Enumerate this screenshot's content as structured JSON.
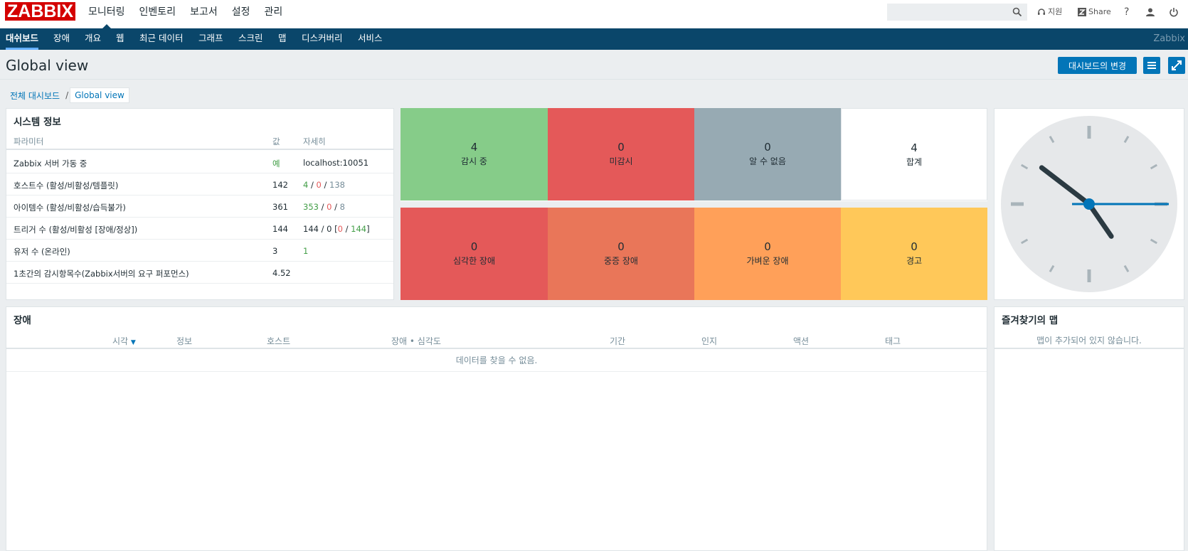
{
  "header": {
    "logo": "ZABBIX",
    "menu": [
      "모니터링",
      "인벤토리",
      "보고서",
      "설정",
      "관리"
    ],
    "search": {
      "value": "",
      "placeholder": ""
    },
    "support_label": "지원",
    "share_label": "Share",
    "help_label": "?"
  },
  "subnav": {
    "items": [
      "대쉬보드",
      "장애",
      "개요",
      "웹",
      "최근 데이터",
      "그래프",
      "스크린",
      "맵",
      "디스커버리",
      "서비스"
    ],
    "brand": "Zabbix"
  },
  "page": {
    "title": "Global view",
    "change_button": "대시보드의 변경"
  },
  "breadcrumb": {
    "parent": "전체 대시보드",
    "separator": "/",
    "current": "Global view"
  },
  "system_info": {
    "title": "시스템 정보",
    "columns": [
      "파라미터",
      "값",
      "자세히"
    ],
    "rows": [
      {
        "param": "Zabbix 서버 가동 중",
        "value": "예",
        "detail": "localhost:10051"
      },
      {
        "param": "호스트수 (활성/비활성/템플릿)",
        "value": "142",
        "d1": "4",
        "d2": "0",
        "d3": "138"
      },
      {
        "param": "아이템수 (활성/비활성/습득불가)",
        "value": "361",
        "d1": "353",
        "d2": "0",
        "d3": "8"
      },
      {
        "param": "트리거 수 (활성/비활성 [장애/정상])",
        "value": "144",
        "d1": "144",
        "d2": "0",
        "d3": "0",
        "d4": "144"
      },
      {
        "param": "유저 수 (온라인)",
        "value": "3",
        "d1": "1"
      },
      {
        "param": "1초간의 감시항목수(Zabbix서버의 요구 퍼포먼스)",
        "value": "4.52"
      }
    ]
  },
  "host_status": [
    {
      "count": "4",
      "label": "감시 중",
      "color": "#86cc89"
    },
    {
      "count": "0",
      "label": "미감시",
      "color": "#e45959"
    },
    {
      "count": "0",
      "label": "알 수 없음",
      "color": "#97aab3"
    },
    {
      "count": "4",
      "label": "합계",
      "color": "#ffffff"
    }
  ],
  "severity_status": [
    {
      "count": "0",
      "label": "심각한 장애",
      "color": "#e45959"
    },
    {
      "count": "0",
      "label": "중증 장애",
      "color": "#e97659"
    },
    {
      "count": "0",
      "label": "가벼운 장애",
      "color": "#ffa059"
    },
    {
      "count": "0",
      "label": "경고",
      "color": "#ffc859"
    }
  ],
  "problems": {
    "title": "장애",
    "columns": [
      "시각",
      "정보",
      "호스트",
      "장애 • 심각도",
      "기간",
      "인지",
      "액션",
      "태그"
    ],
    "sort_indicator": "▼",
    "empty_text": "데이터를 찾을 수 없음."
  },
  "favorite_maps": {
    "title": "즐겨찾기의 맵",
    "empty_text": "맵이 추가되어 있지 않습니다."
  },
  "clock": {
    "hour": 4,
    "minute": 51,
    "second": 15
  }
}
